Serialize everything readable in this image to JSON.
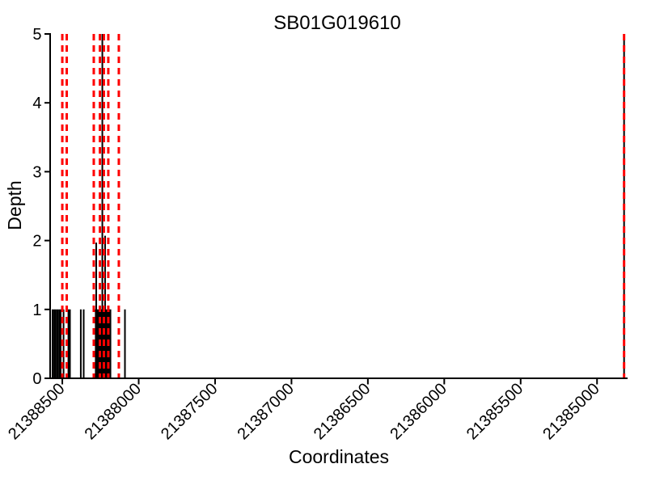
{
  "chart_data": {
    "type": "bar",
    "title": "SB01G019610",
    "xlabel": "Coordinates",
    "ylabel": "Depth",
    "x_axis_reversed": true,
    "xlim": [
      21388577,
      21384800
    ],
    "ylim": [
      0,
      5
    ],
    "xticks": [
      21388500,
      21388000,
      21387500,
      21387000,
      21386500,
      21386000,
      21385500,
      21385000
    ],
    "yticks": [
      0,
      1,
      2,
      3,
      4,
      5
    ],
    "grid": false,
    "legend_position": "none",
    "bar_color": "#000000",
    "boundary_color": "#ff0000",
    "axis_color": "#000000",
    "background_color": "#ffffff",
    "depth_bars": [
      {
        "x": 21388564,
        "depth": 1
      },
      {
        "x": 21388553,
        "depth": 1
      },
      {
        "x": 21388543,
        "depth": 1
      },
      {
        "x": 21388532,
        "depth": 1
      },
      {
        "x": 21388521,
        "depth": 1
      },
      {
        "x": 21388511,
        "depth": 1
      },
      {
        "x": 21388492,
        "depth": 1
      },
      {
        "x": 21388460,
        "depth": 1
      },
      {
        "x": 21388450,
        "depth": 1
      },
      {
        "x": 21388379,
        "depth": 1
      },
      {
        "x": 21388360,
        "depth": 1
      },
      {
        "x": 21388281,
        "depth": 1
      },
      {
        "x": 21388278,
        "depth": 1.97
      },
      {
        "x": 21388273,
        "depth": 1
      },
      {
        "x": 21388265,
        "depth": 1
      },
      {
        "x": 21388257,
        "depth": 1
      },
      {
        "x": 21388249,
        "depth": 1
      },
      {
        "x": 21388241,
        "depth": 1
      },
      {
        "x": 21388238,
        "depth": 5
      },
      {
        "x": 21388233,
        "depth": 1
      },
      {
        "x": 21388225,
        "depth": 1
      },
      {
        "x": 21388220,
        "depth": 2.07
      },
      {
        "x": 21388217,
        "depth": 1
      },
      {
        "x": 21388209,
        "depth": 1
      },
      {
        "x": 21388201,
        "depth": 1
      },
      {
        "x": 21388193,
        "depth": 1
      },
      {
        "x": 21388185,
        "depth": 1
      },
      {
        "x": 21388090,
        "depth": 1
      },
      {
        "x": 21384823,
        "depth": 5
      }
    ],
    "boundary_lines": [
      21388500,
      21388471,
      21388294,
      21388254,
      21388228,
      21388199,
      21388130,
      21384823
    ]
  }
}
